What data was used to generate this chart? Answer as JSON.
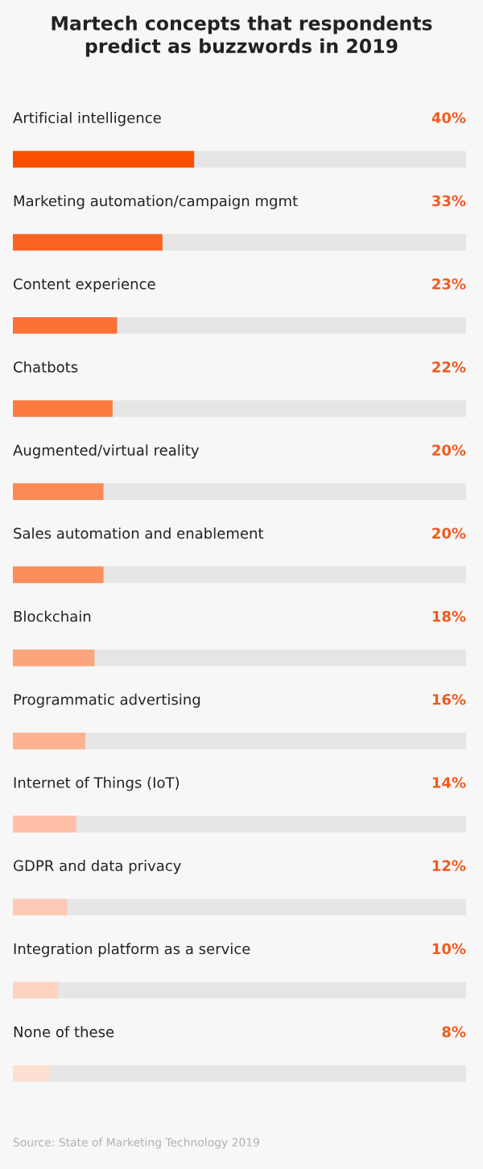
{
  "chart_data": {
    "type": "bar",
    "orientation": "horizontal",
    "title": "Martech concepts that respondents\npredict as buzzwords in 2019",
    "categories": [
      "Artificial intelligence",
      "Marketing automation/campaign mgmt",
      "Content experience",
      "Chatbots",
      "Augmented/virtual reality",
      "Sales automation and enablement",
      "Blockchain",
      "Programmatic advertising",
      "Internet of Things (IoT)",
      "GDPR and data privacy",
      "Integration platform as a service",
      "None of these"
    ],
    "values": [
      40,
      33,
      23,
      22,
      20,
      20,
      18,
      16,
      14,
      12,
      10,
      8
    ],
    "value_labels": [
      "40%",
      "33%",
      "23%",
      "22%",
      "20%",
      "20%",
      "18%",
      "16%",
      "14%",
      "12%",
      "10%",
      "8%"
    ],
    "colors": [
      "#f85000",
      "#fa6220",
      "#fa7236",
      "#fb7a40",
      "#fb8a55",
      "#fb8f5c",
      "#fca57c",
      "#fdb291",
      "#fdbfa5",
      "#fdcab5",
      "#fed3c1",
      "#fee0d2"
    ],
    "xlim": [
      0,
      100
    ],
    "annotations": [
      "Source: State of Marketing Technology 2019"
    ]
  }
}
